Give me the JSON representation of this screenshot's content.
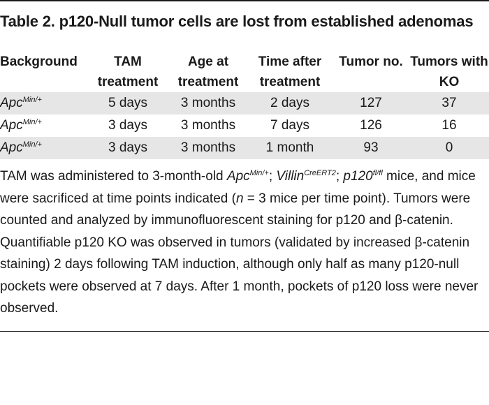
{
  "title": "Table 2. p120-Null tumor cells are lost from established adenomas",
  "table": {
    "headers": {
      "background_line1": "Background",
      "tam_line1": "TAM",
      "tam_line2": "treatment",
      "age_line1": "Age at",
      "age_line2": "treatment",
      "time_line1": "Time after",
      "time_line2": "treatment",
      "tumor_no": "Tumor no.",
      "ko_line1": "Tumors with",
      "ko_line2": "KO"
    },
    "rows": [
      {
        "background": "Apc",
        "background_sup": "Min/+",
        "tam": "5 days",
        "age": "3 months",
        "time": "2 days",
        "tumor_no": "127",
        "ko": "37"
      },
      {
        "background": "Apc",
        "background_sup": "Min/+",
        "tam": "3 days",
        "age": "3 months",
        "time": "7 days",
        "tumor_no": "126",
        "ko": "16"
      },
      {
        "background": "Apc",
        "background_sup": "Min/+",
        "tam": "3 days",
        "age": "3 months",
        "time": "1 month",
        "tumor_no": "93",
        "ko": "0"
      }
    ]
  },
  "note": {
    "p1": "TAM was administered to 3-month-old ",
    "apc": "Apc",
    "apc_sup": "Min/+",
    "sep1": "; ",
    "villin": "Villin",
    "villin_sup": "CreERT2",
    "sep2": "; ",
    "p120": "p120",
    "p120_sup": "fl/fl",
    "p2": " mice, and mice were sacrificed at time points indicated (",
    "n": "n",
    "p3": " = 3 mice per time point). Tumors were counted and analyzed by immunofluorescent staining for p120 and β-catenin. Quantifiable p120 KO was observed in tumors (validated by increased β-catenin staining) 2 days following TAM induction, although only half as many p120-null pockets were observed at 7 days. After 1 month, pockets of p120 loss were never observed."
  }
}
